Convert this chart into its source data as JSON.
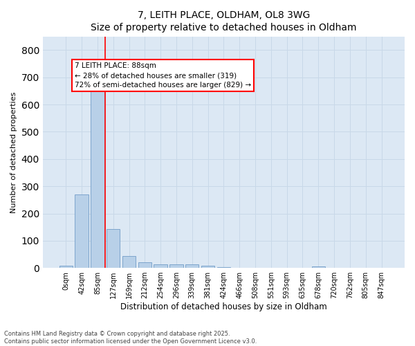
{
  "title_line1": "7, LEITH PLACE, OLDHAM, OL8 3WG",
  "title_line2": "Size of property relative to detached houses in Oldham",
  "xlabel": "Distribution of detached houses by size in Oldham",
  "ylabel": "Number of detached properties",
  "footnote_line1": "Contains HM Land Registry data © Crown copyright and database right 2025.",
  "footnote_line2": "Contains public sector information licensed under the Open Government Licence v3.0.",
  "bin_labels": [
    "0sqm",
    "42sqm",
    "85sqm",
    "127sqm",
    "169sqm",
    "212sqm",
    "254sqm",
    "296sqm",
    "339sqm",
    "381sqm",
    "424sqm",
    "466sqm",
    "508sqm",
    "551sqm",
    "593sqm",
    "635sqm",
    "678sqm",
    "720sqm",
    "762sqm",
    "805sqm",
    "847sqm"
  ],
  "bar_heights": [
    8,
    270,
    650,
    142,
    45,
    20,
    14,
    12,
    12,
    7,
    2,
    0,
    0,
    0,
    0,
    0,
    5,
    0,
    0,
    0,
    0
  ],
  "bar_color": "#b8d0e8",
  "bar_edge_color": "#6090c0",
  "grid_color": "#c8d8e8",
  "background_color": "#dce8f4",
  "vline_color": "red",
  "vline_x_index": 2.5,
  "annotation_text": "7 LEITH PLACE: 88sqm\n← 28% of detached houses are smaller (319)\n72% of semi-detached houses are larger (829) →",
  "annotation_box_color": "white",
  "annotation_box_edge": "red",
  "ylim": [
    0,
    850
  ],
  "yticks": [
    0,
    100,
    200,
    300,
    400,
    500,
    600,
    700,
    800
  ]
}
